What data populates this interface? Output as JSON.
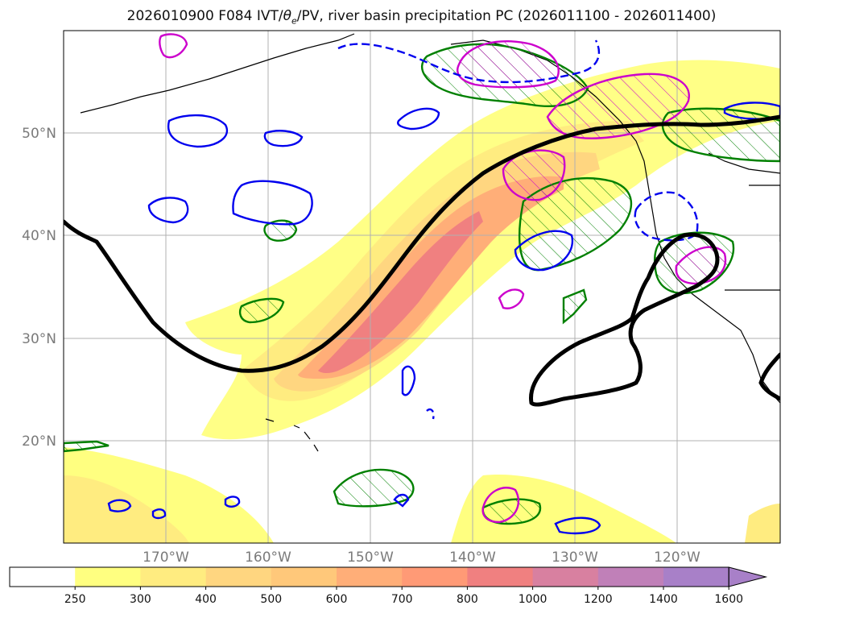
{
  "title": {
    "prefix": "2026010900 F084 IVT/",
    "theta": "θ",
    "theta_sub": "e",
    "suffix": "/PV, river basin precipitation PC (2026011100 - 2026011400)"
  },
  "map": {
    "lat_labels": [
      "50°N",
      "40°N",
      "30°N",
      "20°N"
    ],
    "lon_labels": [
      "170°W",
      "160°W",
      "150°W",
      "140°W",
      "130°W",
      "120°W"
    ]
  },
  "colorbar": {
    "ticks": [
      "250",
      "300",
      "400",
      "500",
      "600",
      "700",
      "800",
      "1000",
      "1200",
      "1400",
      "1600"
    ],
    "colors": [
      "#ffffff",
      "#ffff80",
      "#ffec80",
      "#ffd680",
      "#ffc87a",
      "#ffae78",
      "#ff9a76",
      "#f08080",
      "#d880a0",
      "#c080b8",
      "#a880c8"
    ]
  },
  "legend_colors": {
    "ivt_fill": "#ffd680",
    "theta_e_contour": "#000000",
    "pv_positive": "#0000ee",
    "green_contour": "#008000",
    "magenta_contour": "#cc00cc"
  }
}
